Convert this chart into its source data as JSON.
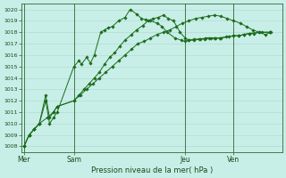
{
  "bg_color": "#c8eee8",
  "grid_color": "#b0d8cc",
  "line_color": "#1a6b1a",
  "marker_color": "#1a6b1a",
  "xlabel": "Pression niveau de la mer( hPa )",
  "ylim": [
    1007.5,
    1020.5
  ],
  "yticks": [
    1008,
    1009,
    1010,
    1011,
    1012,
    1013,
    1014,
    1015,
    1016,
    1017,
    1018,
    1019,
    1020
  ],
  "xtick_labels": [
    "Mer",
    "Sam",
    "Jeu",
    "Ven"
  ],
  "vline_positions": [
    0.0,
    0.195,
    0.63,
    0.82
  ],
  "s1_x": [
    0.0,
    0.02,
    0.04,
    0.06,
    0.085,
    0.1,
    0.115,
    0.13,
    0.195,
    0.215,
    0.225,
    0.245,
    0.26,
    0.275,
    0.3,
    0.315,
    0.33,
    0.345,
    0.37,
    0.395,
    0.415,
    0.44,
    0.46,
    0.475,
    0.495,
    0.52,
    0.54,
    0.56,
    0.59,
    0.615,
    0.63,
    0.645,
    0.665,
    0.69,
    0.71,
    0.73,
    0.75,
    0.77,
    0.8,
    0.82,
    0.84,
    0.86,
    0.88,
    0.92,
    0.96
  ],
  "s1_y": [
    1008,
    1009,
    1009.5,
    1010,
    1012,
    1010,
    1010.5,
    1011,
    1015,
    1015.5,
    1015.2,
    1015.8,
    1015.3,
    1016,
    1018,
    1018.2,
    1018.4,
    1018.5,
    1019.0,
    1019.3,
    1020.0,
    1019.6,
    1019.2,
    1019.1,
    1019.0,
    1018.8,
    1018.5,
    1018.0,
    1017.5,
    1017.3,
    1017.2,
    1017.3,
    1017.4,
    1017.4,
    1017.5,
    1017.5,
    1017.5,
    1017.5,
    1017.6,
    1017.7,
    1017.7,
    1017.8,
    1017.9,
    1018.0,
    1018.0
  ],
  "s2_x": [
    0.0,
    0.02,
    0.04,
    0.06,
    0.085,
    0.1,
    0.115,
    0.13,
    0.195,
    0.215,
    0.235,
    0.255,
    0.275,
    0.295,
    0.315,
    0.335,
    0.355,
    0.375,
    0.395,
    0.42,
    0.44,
    0.465,
    0.485,
    0.505,
    0.525,
    0.545,
    0.565,
    0.585,
    0.61,
    0.63,
    0.645,
    0.665,
    0.685,
    0.705,
    0.725,
    0.745,
    0.765,
    0.79,
    0.82,
    0.84,
    0.86,
    0.88,
    0.9,
    0.93,
    0.96
  ],
  "s2_y": [
    1008,
    1009,
    1009.5,
    1010,
    1012.5,
    1010.5,
    1011,
    1011.5,
    1012,
    1012.5,
    1013,
    1013.5,
    1014,
    1014.5,
    1015.2,
    1015.8,
    1016.2,
    1016.8,
    1017.3,
    1017.8,
    1018.2,
    1018.6,
    1019.0,
    1019.2,
    1019.3,
    1019.5,
    1019.2,
    1019.0,
    1018.0,
    1017.5,
    1017.3,
    1017.3,
    1017.4,
    1017.4,
    1017.5,
    1017.5,
    1017.5,
    1017.6,
    1017.7,
    1017.7,
    1017.8,
    1017.9,
    1017.9,
    1018.0,
    1018.0
  ],
  "s3_x": [
    0.0,
    0.02,
    0.04,
    0.06,
    0.09,
    0.115,
    0.13,
    0.195,
    0.22,
    0.245,
    0.27,
    0.295,
    0.32,
    0.345,
    0.37,
    0.395,
    0.42,
    0.445,
    0.47,
    0.495,
    0.52,
    0.545,
    0.57,
    0.595,
    0.62,
    0.645,
    0.67,
    0.695,
    0.72,
    0.745,
    0.77,
    0.795,
    0.82,
    0.845,
    0.87,
    0.895,
    0.92,
    0.945,
    0.965
  ],
  "s3_y": [
    1008,
    1009,
    1009.5,
    1010,
    1010.5,
    1011,
    1011.5,
    1012,
    1012.5,
    1013,
    1013.5,
    1014,
    1014.5,
    1015,
    1015.5,
    1016,
    1016.5,
    1017,
    1017.2,
    1017.5,
    1017.8,
    1018.0,
    1018.2,
    1018.5,
    1018.8,
    1019.0,
    1019.2,
    1019.3,
    1019.4,
    1019.5,
    1019.4,
    1019.2,
    1019.0,
    1018.8,
    1018.5,
    1018.2,
    1018.0,
    1017.8,
    1018.0
  ]
}
